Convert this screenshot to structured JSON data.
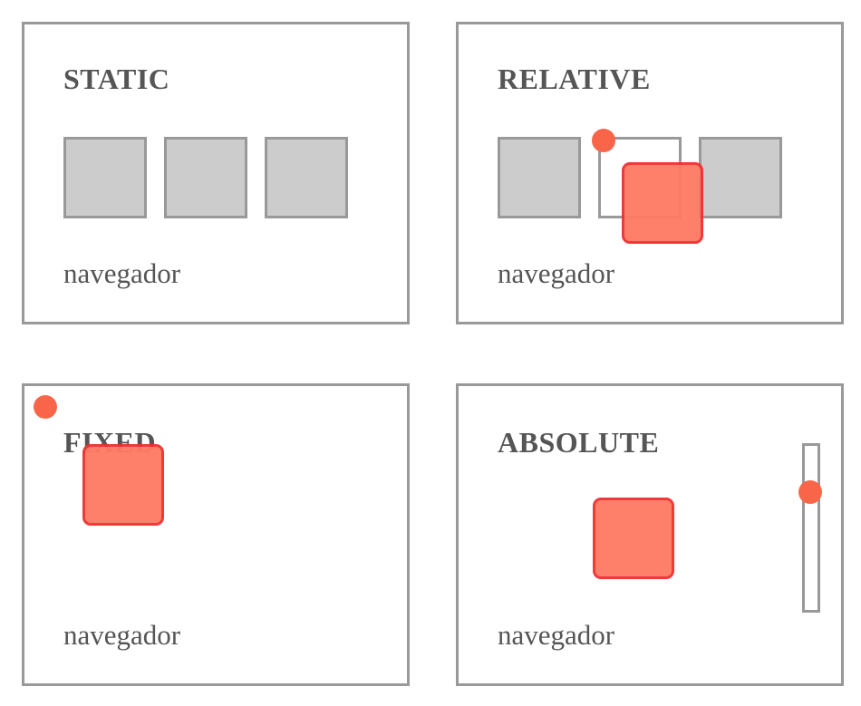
{
  "colors": {
    "border": "#999999",
    "box_fill": "#cccccc",
    "highlight_fill": "#ff7a63",
    "highlight_border": "#f03030",
    "dot": "#f86548",
    "text": "#555555"
  },
  "panels": {
    "static": {
      "title": "STATIC",
      "label": "navegador"
    },
    "relative": {
      "title": "RELATIVE",
      "label": "navegador"
    },
    "fixed": {
      "title": "FIXED",
      "label": "navegador"
    },
    "absolute": {
      "title": "ABSOLUTE",
      "label": "navegador"
    }
  }
}
